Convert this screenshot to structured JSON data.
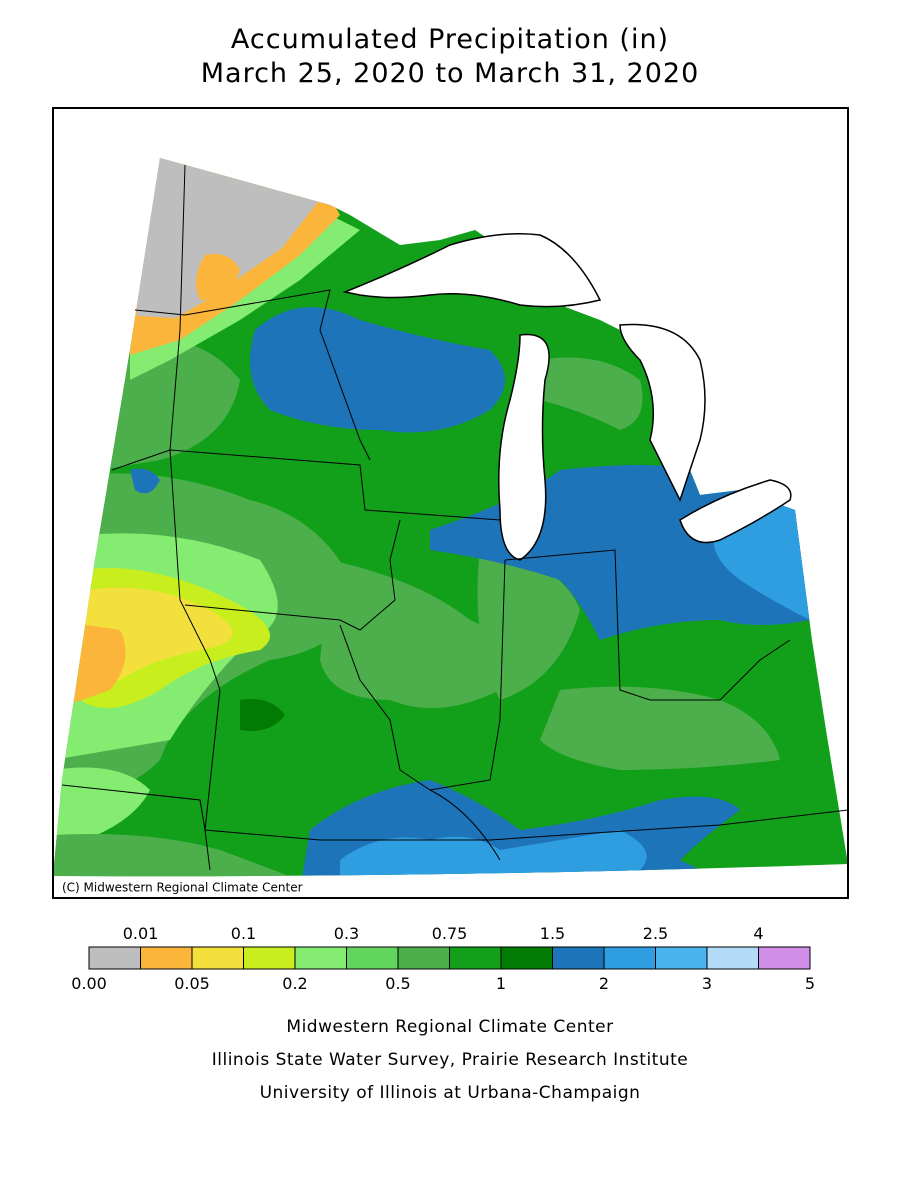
{
  "title": [
    "Accumulated Precipitation (in)",
    "March 25, 2020 to March 31, 2020"
  ],
  "copyright": "(C) Midwestern Regional Climate Center",
  "legend": {
    "upper_labels": [
      "0.01",
      "0.1",
      "0.3",
      "0.75",
      "1.5",
      "2.5",
      "4"
    ],
    "lower_labels": [
      "0.00",
      "0.05",
      "0.2",
      "0.5",
      "1",
      "2",
      "3",
      "5"
    ],
    "colors": [
      "#bebebe",
      "#fbb53a",
      "#f3e03c",
      "#c8ee1e",
      "#84ec70",
      "#62d65c",
      "#4caf4c",
      "#12a01a",
      "#027b02",
      "#1d74b8",
      "#2e9ee0",
      "#4ab4ee",
      "#b4dcf8",
      "#d18ee8"
    ]
  },
  "credits": [
    "Midwestern Regional Climate Center",
    "Illinois State Water Survey, Prairie Research Institute",
    "University of Illinois at Urbana-Champaign"
  ]
}
